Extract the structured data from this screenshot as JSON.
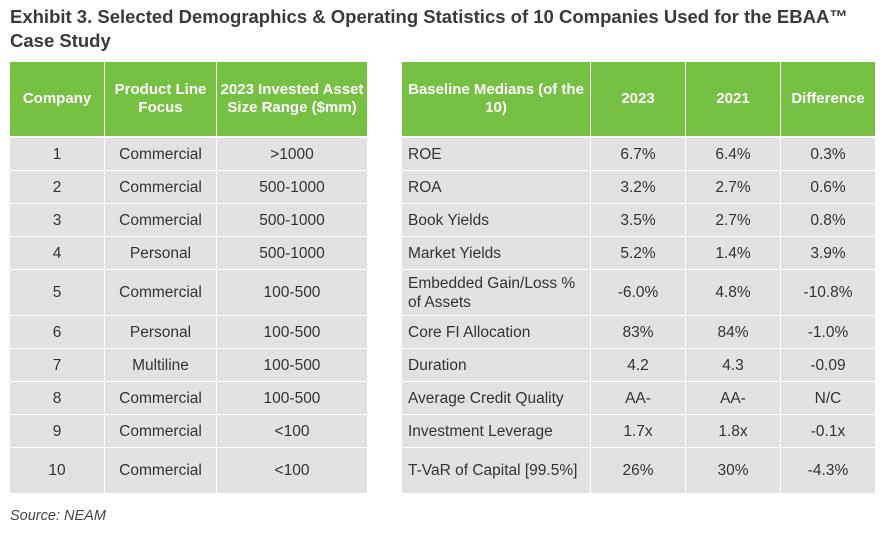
{
  "title": "Exhibit 3. Selected Demographics & Operating Statistics of 10 Companies Used for the EBAA™ Case Study",
  "left_table": {
    "headers": {
      "company": "Company",
      "product_line": "Product Line Focus",
      "asset_size": "2023 Invested Asset Size Range ($mm)"
    },
    "rows": [
      {
        "company": "1",
        "product_line": "Commercial",
        "asset_size": ">1000"
      },
      {
        "company": "2",
        "product_line": "Commercial",
        "asset_size": "500-1000"
      },
      {
        "company": "3",
        "product_line": "Commercial",
        "asset_size": "500-1000"
      },
      {
        "company": "4",
        "product_line": "Personal",
        "asset_size": "500-1000"
      },
      {
        "company": "5",
        "product_line": "Commercial",
        "asset_size": "100-500"
      },
      {
        "company": "6",
        "product_line": "Personal",
        "asset_size": "100-500"
      },
      {
        "company": "7",
        "product_line": "Multiline",
        "asset_size": "100-500"
      },
      {
        "company": "8",
        "product_line": "Commercial",
        "asset_size": "100-500"
      },
      {
        "company": "9",
        "product_line": "Commercial",
        "asset_size": "<100"
      },
      {
        "company": "10",
        "product_line": "Commercial",
        "asset_size": "<100"
      }
    ]
  },
  "right_table": {
    "headers": {
      "metric": "Baseline Medians (of the 10)",
      "y2023": "2023",
      "y2021": "2021",
      "difference": "Difference"
    },
    "rows": [
      {
        "metric": "ROE",
        "y2023": "6.7%",
        "y2021": "6.4%",
        "difference": "0.3%"
      },
      {
        "metric": "ROA",
        "y2023": "3.2%",
        "y2021": "2.7%",
        "difference": "0.6%"
      },
      {
        "metric": "Book Yields",
        "y2023": "3.5%",
        "y2021": "2.7%",
        "difference": "0.8%"
      },
      {
        "metric": "Market Yields",
        "y2023": "5.2%",
        "y2021": "1.4%",
        "difference": "3.9%"
      },
      {
        "metric": "Embedded Gain/Loss % of Assets",
        "y2023": "-6.0%",
        "y2021": "4.8%",
        "difference": "-10.8%"
      },
      {
        "metric": "Core FI Allocation",
        "y2023": "83%",
        "y2021": "84%",
        "difference": "-1.0%"
      },
      {
        "metric": "Duration",
        "y2023": "4.2",
        "y2021": "4.3",
        "difference": "-0.09"
      },
      {
        "metric": "Average Credit Quality",
        "y2023": "AA-",
        "y2021": "AA-",
        "difference": "N/C"
      },
      {
        "metric": "Investment Leverage",
        "y2023": "1.7x",
        "y2021": "1.8x",
        "difference": "-0.1x"
      },
      {
        "metric": "T-VaR of Capital [99.5%]",
        "y2023": "26%",
        "y2021": "30%",
        "difference": "-4.3%"
      }
    ]
  },
  "source": "Source: NEAM",
  "colors": {
    "header_bg": "#76c043",
    "cell_bg": "#e2e2e2"
  }
}
